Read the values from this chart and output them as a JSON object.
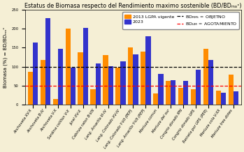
{
  "title": "Estatus de Biomasa respecto del Rendimiento maximo sostenible (BD/BDₘₐˣ)",
  "ylabel": "Biomasa (%) = BD/BDₘₐˣ",
  "categories": [
    "Anchoveta XV-II",
    "Anchoveta B-IV",
    "Anchoveta V-X",
    "Sardina colillon V-X",
    "Jurel XV-X",
    "Cabinza raton B-VIII",
    "Lang. Amarilla III-IV",
    "Lang. Colorado XV-IV",
    "Lang. Colorado Y-VII (PEP)",
    "Lang. Amarillo Y-VII (PEP)",
    "Merluza comun",
    "Merluza del sur",
    "Congrio dorado IPN",
    "Congrio dorado UPS",
    "Reineta por UPS (PEP)",
    "Merluza cola V-XII",
    "Merluza tres dotes"
  ],
  "values_2013": [
    87,
    118,
    15,
    200,
    138,
    40,
    130,
    98,
    150,
    140,
    30,
    62,
    45,
    40,
    147,
    37,
    79
  ],
  "values_2023": [
    163,
    228,
    147,
    98,
    202,
    109,
    101,
    115,
    133,
    180,
    82,
    65,
    63,
    93,
    118,
    31,
    36
  ],
  "color_2013": "#FF8C00",
  "color_2023": "#3333CC",
  "bd_rms_line": 100,
  "bd_lim_line": 50,
  "ylim": [
    0,
    250
  ],
  "yticks": [
    0,
    50,
    100,
    150,
    200,
    250
  ],
  "legend_2013": "2013 LGPA vigente",
  "legend_2023": "2023",
  "background_color": "#F5EFD5",
  "title_fontsize": 5.8,
  "tick_fontsize": 3.8,
  "ylabel_fontsize": 5.0,
  "legend_fontsize": 4.5
}
